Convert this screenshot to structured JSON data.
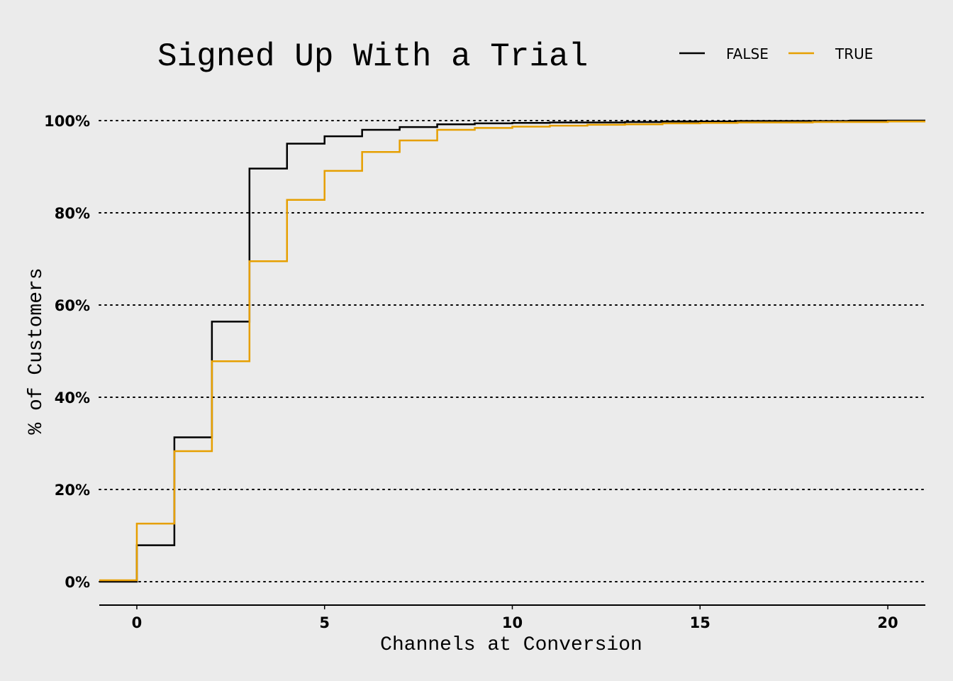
{
  "chart_data": {
    "type": "line",
    "step": true,
    "title": "Signed Up With a Trial",
    "xlabel": "Channels at Conversion",
    "ylabel": "% of Customers",
    "xlim": [
      -1,
      21
    ],
    "ylim": [
      0,
      100
    ],
    "x_ticks": [
      0,
      5,
      10,
      15,
      20
    ],
    "x_tick_labels": [
      "0",
      "5",
      "10",
      "15",
      "20"
    ],
    "y_ticks": [
      0,
      20,
      40,
      60,
      80,
      100
    ],
    "y_tick_labels": [
      "0%",
      "20%",
      "40%",
      "60%",
      "80%",
      "100%"
    ],
    "grid": "horizontal dotted",
    "legend_position": "top-right",
    "x": [
      -1,
      0,
      1,
      2,
      3,
      4,
      5,
      6,
      7,
      8,
      9,
      10,
      11,
      12,
      13,
      14,
      15,
      16,
      17,
      18,
      19,
      20,
      21
    ],
    "series": [
      {
        "name": "FALSE",
        "color": "#000000",
        "values": [
          0,
          7.9,
          31.3,
          56.4,
          89.6,
          95.0,
          96.6,
          98.0,
          98.6,
          99.2,
          99.4,
          99.5,
          99.6,
          99.6,
          99.7,
          99.8,
          99.8,
          99.9,
          99.9,
          99.9,
          100,
          100,
          100
        ]
      },
      {
        "name": "TRUE",
        "color": "#e69f00",
        "values": [
          0.3,
          12.6,
          28.3,
          47.8,
          69.5,
          82.8,
          89.1,
          93.2,
          95.7,
          98.0,
          98.4,
          98.7,
          98.9,
          99.1,
          99.2,
          99.4,
          99.5,
          99.6,
          99.6,
          99.7,
          99.7,
          99.8,
          99.8
        ]
      }
    ]
  }
}
